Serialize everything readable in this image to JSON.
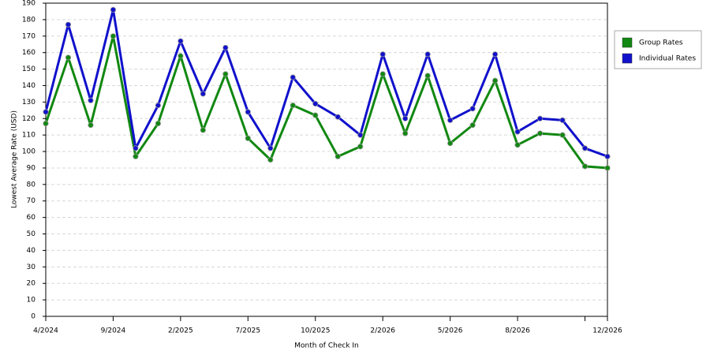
{
  "chart_data": {
    "type": "line",
    "x_label": "Month of Check In",
    "y_label": "Lowest Average Rate (USD)",
    "categories": [
      "4/2024",
      null,
      null,
      "9/2024",
      null,
      null,
      "2/2025",
      null,
      null,
      "7/2025",
      null,
      null,
      "10/2025",
      null,
      null,
      "2/2026",
      null,
      null,
      "5/2026",
      null,
      null,
      "8/2026",
      null,
      null,
      null,
      "12/2026"
    ],
    "series": [
      {
        "name": "Group Rates",
        "color": "#118811",
        "values": [
          117,
          157,
          116,
          170,
          97,
          117,
          158,
          113,
          147,
          108,
          95,
          128,
          122,
          97,
          103,
          147,
          111,
          146,
          105,
          116,
          143,
          104,
          111,
          110,
          91,
          90
        ]
      },
      {
        "name": "Individual Rates",
        "color": "#1111cc",
        "values": [
          124,
          177,
          131,
          186,
          102,
          128,
          167,
          135,
          163,
          124,
          102,
          145,
          129,
          121,
          110,
          159,
          120,
          159,
          119,
          126,
          159,
          112,
          120,
          119,
          102,
          97
        ]
      }
    ],
    "ylim": [
      0,
      190
    ],
    "yticks": [
      0,
      10,
      20,
      30,
      40,
      50,
      60,
      70,
      80,
      90,
      100,
      110,
      120,
      130,
      140,
      150,
      160,
      170,
      180,
      190
    ],
    "grid": true,
    "legend": "right"
  }
}
